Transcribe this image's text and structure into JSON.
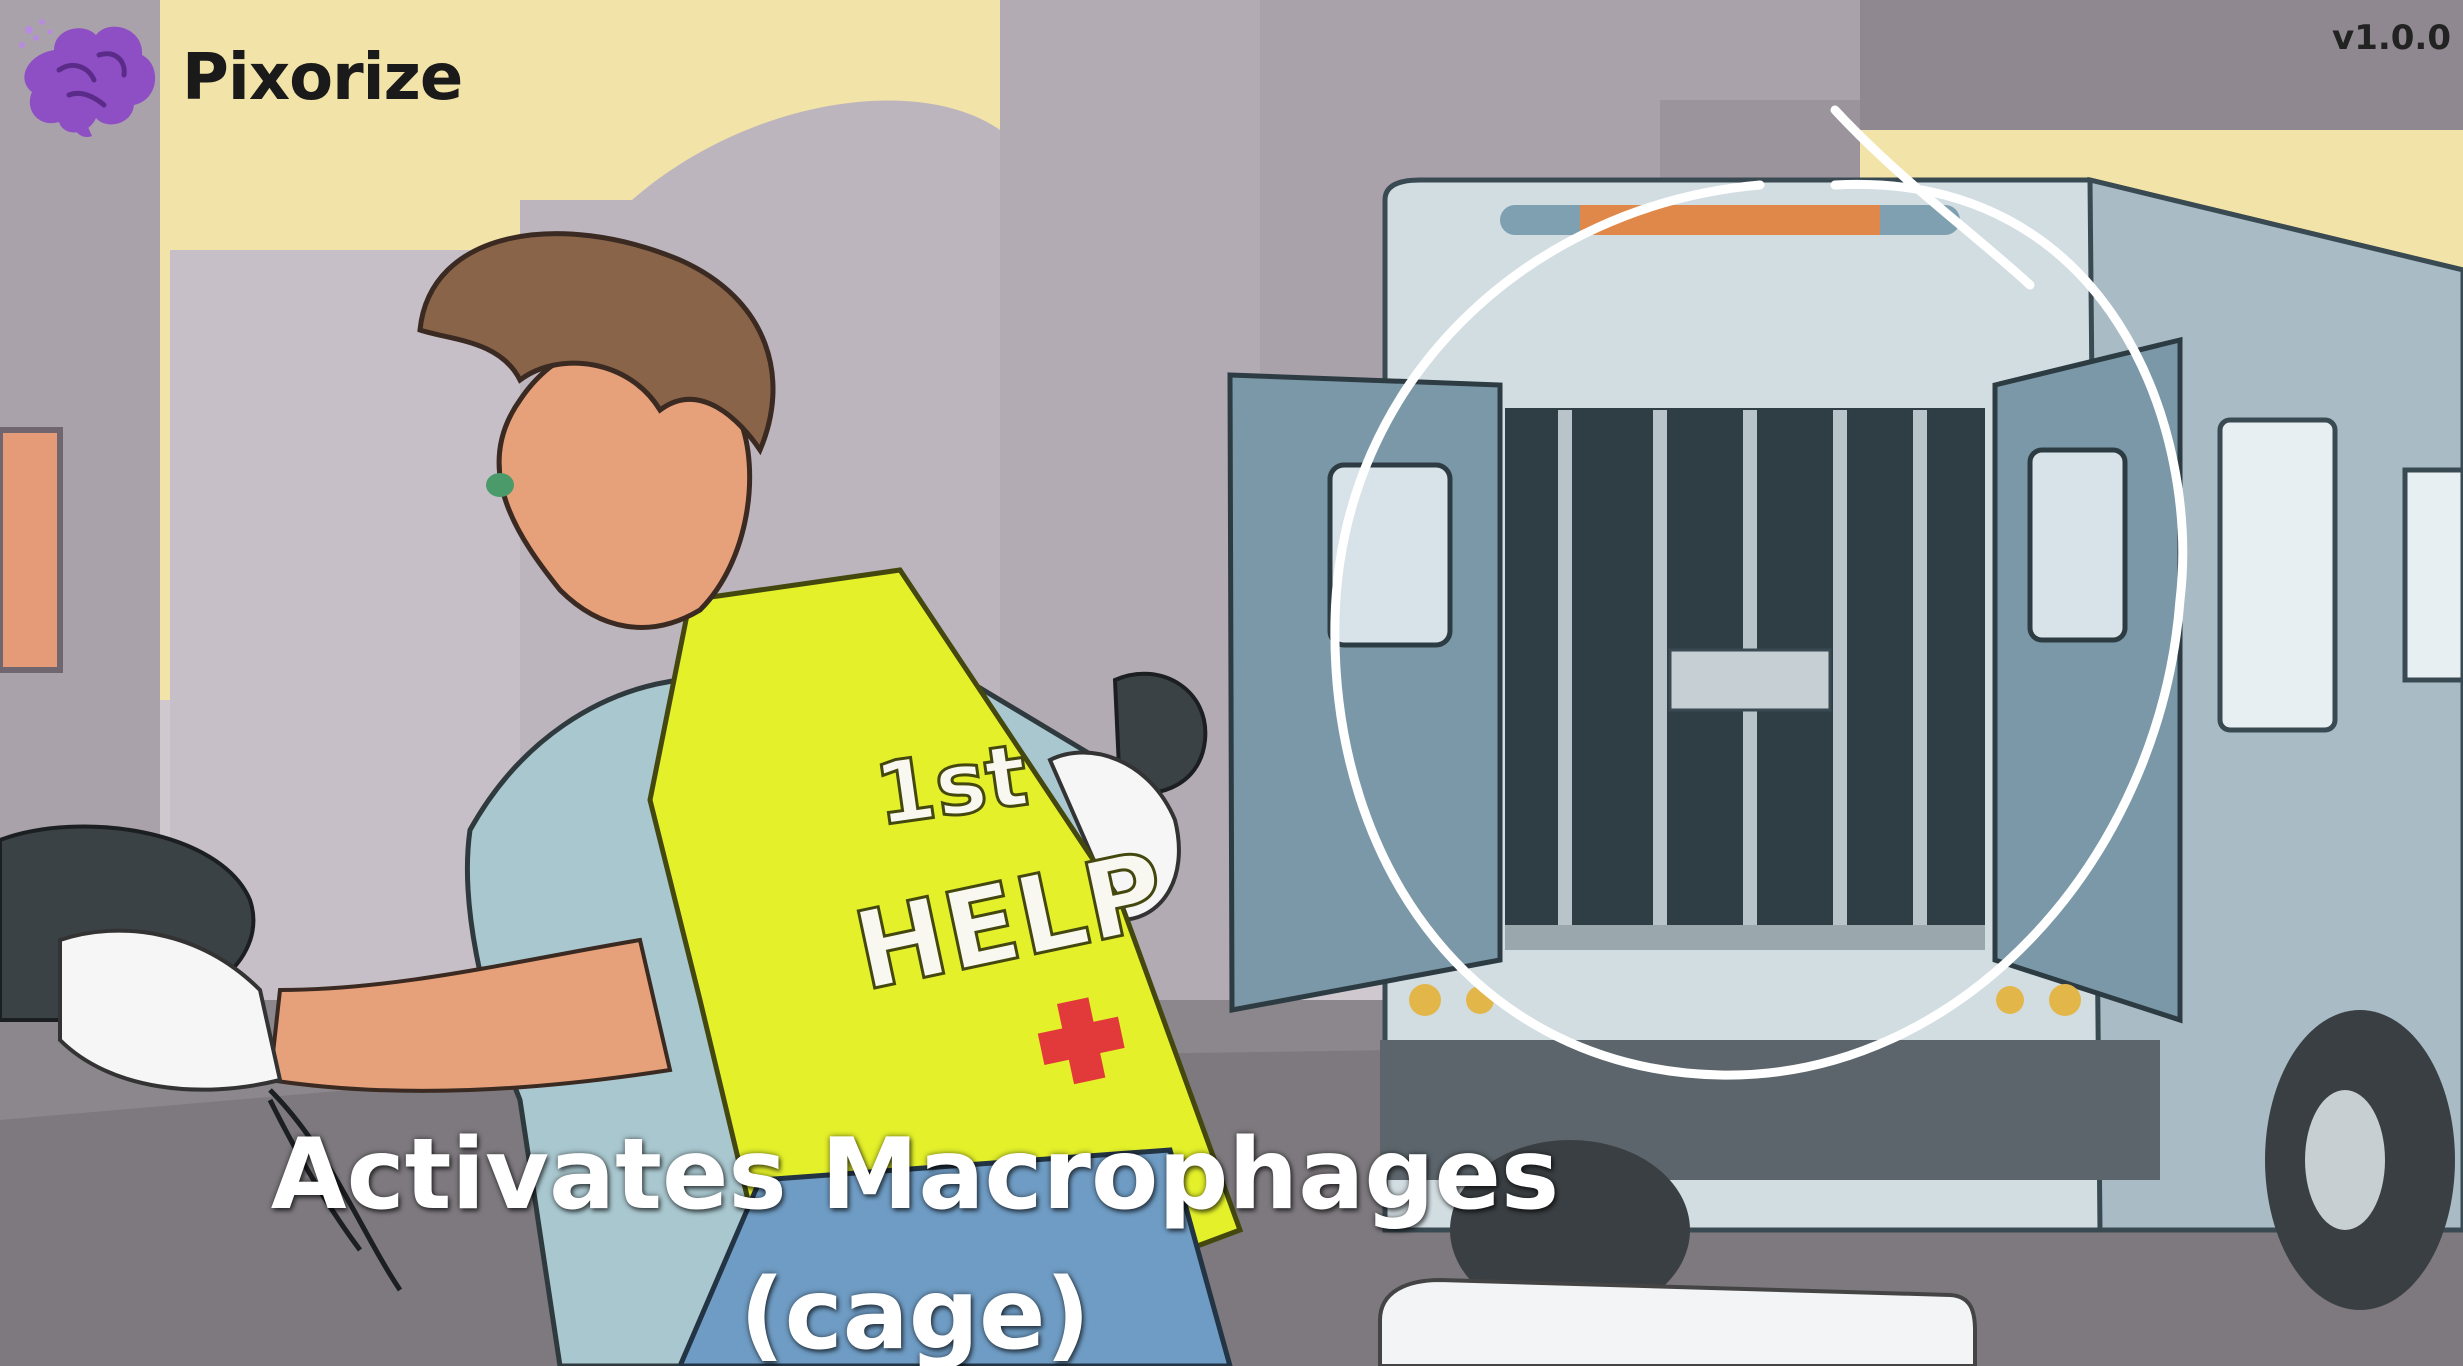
{
  "brand": {
    "name": "Pixorize",
    "logo_icon": "brain-icon",
    "logo_color": "#8e4fc4"
  },
  "version": "v1.0.0",
  "caption": {
    "line1": "Activates Macrophages",
    "line2": "(cage)"
  },
  "illustration": {
    "vest_text_1": "1st",
    "vest_text_2": "HELP",
    "vest_color": "#e3f02a",
    "sky_color": "#f2e3a8",
    "highlight_circle_color": "#ffffff"
  }
}
